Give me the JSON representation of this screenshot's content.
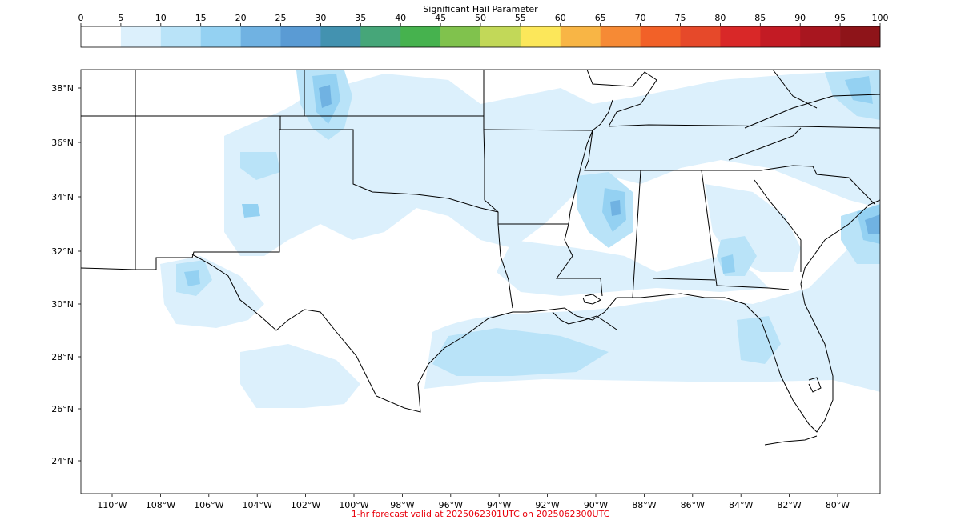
{
  "colorbar": {
    "title": "Significant Hail Parameter",
    "ticks": [
      "0",
      "5",
      "10",
      "15",
      "20",
      "25",
      "30",
      "35",
      "40",
      "45",
      "50",
      "55",
      "60",
      "65",
      "70",
      "75",
      "80",
      "85",
      "90",
      "95",
      "100"
    ],
    "colors": [
      "#ffffff",
      "#dcf0fc",
      "#b9e3f8",
      "#94d1f2",
      "#70b2e2",
      "#5a9bd4",
      "#4392b0",
      "#46a679",
      "#46b24e",
      "#80c24d",
      "#c2d858",
      "#fce75a",
      "#f8b545",
      "#f68a35",
      "#f26128",
      "#e6492a",
      "#d92828",
      "#c31b24",
      "#a8161f",
      "#8e1419"
    ]
  },
  "map": {
    "lat_labels": [
      "38°N",
      "36°N",
      "34°N",
      "32°N",
      "30°N",
      "28°N",
      "26°N",
      "24°N"
    ],
    "lon_labels": [
      "110°W",
      "108°W",
      "106°W",
      "104°W",
      "102°W",
      "100°W",
      "98°W",
      "96°W",
      "94°W",
      "92°W",
      "90°W",
      "88°W",
      "86°W",
      "84°W",
      "82°W",
      "80°W"
    ],
    "field_colors": {
      "light": "#dcf0fc",
      "medium": "#b9e3f8",
      "strong": "#94d1f2",
      "peak": "#70b2e2"
    }
  },
  "footer": "1-hr forecast valid at 2025062301UTC on 2025062300UTC"
}
